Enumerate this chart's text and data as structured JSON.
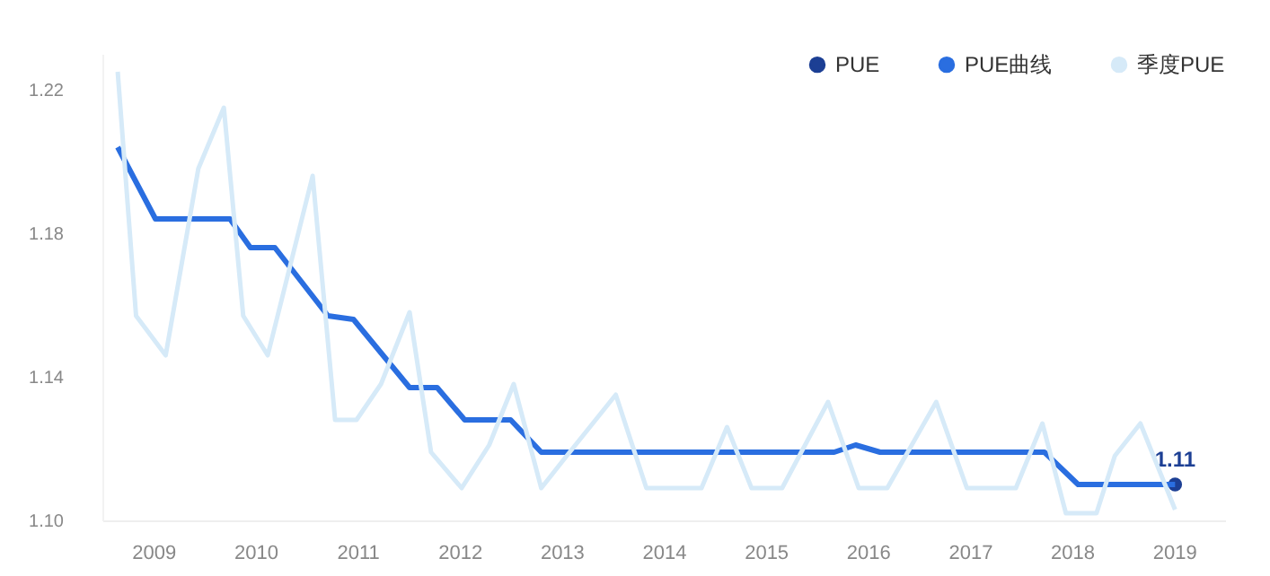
{
  "chart_data": {
    "type": "line",
    "xlim": [
      2008.5,
      2019.5
    ],
    "xticks": [
      2009,
      2010,
      2011,
      2012,
      2013,
      2014,
      2015,
      2016,
      2017,
      2018,
      2019
    ],
    "ylim": [
      1.1,
      1.23
    ],
    "yticks": [
      {
        "value": 1.1,
        "label": "1.10"
      },
      1.14,
      1.18,
      1.22
    ],
    "grid": false,
    "legend": "top right",
    "series": [
      {
        "name": "PUE",
        "type": "scatter",
        "color": "#1c3f94",
        "x": [
          2019.01
        ],
        "values": [
          1.11
        ],
        "value_labels": [
          "1.11"
        ]
      },
      {
        "name": "PUE曲线",
        "color": "#2a6ee0",
        "x": [
          2008.65,
          2009.02,
          2009.75,
          2009.95,
          2010.19,
          2010.71,
          2010.96,
          2011.51,
          2011.78,
          2012.05,
          2012.5,
          2012.8,
          2015.67,
          2015.88,
          2016.12,
          2017.73,
          2018.06,
          2019.01
        ],
        "values": [
          1.204,
          1.184,
          1.184,
          1.176,
          1.176,
          1.157,
          1.156,
          1.137,
          1.137,
          1.128,
          1.128,
          1.119,
          1.119,
          1.121,
          1.119,
          1.119,
          1.11,
          1.11
        ]
      },
      {
        "name": "季度PUE",
        "color": "#d6eaf8",
        "x": [
          2008.65,
          2008.83,
          2009.12,
          2009.44,
          2009.69,
          2009.88,
          2010.12,
          2010.56,
          2010.78,
          2010.99,
          2011.23,
          2011.51,
          2011.72,
          2012.02,
          2012.29,
          2012.53,
          2012.8,
          2013.05,
          2013.53,
          2013.83,
          2014.37,
          2014.62,
          2014.86,
          2015.16,
          2015.61,
          2015.91,
          2016.19,
          2016.67,
          2016.97,
          2017.45,
          2017.71,
          2017.94,
          2018.24,
          2018.42,
          2018.67,
          2019.01
        ],
        "values": [
          1.225,
          1.157,
          1.146,
          1.198,
          1.215,
          1.157,
          1.146,
          1.196,
          1.128,
          1.128,
          1.138,
          1.158,
          1.119,
          1.109,
          1.121,
          1.138,
          1.109,
          1.118,
          1.135,
          1.109,
          1.109,
          1.126,
          1.109,
          1.109,
          1.133,
          1.109,
          1.109,
          1.133,
          1.109,
          1.109,
          1.127,
          1.102,
          1.102,
          1.118,
          1.127,
          1.103
        ]
      }
    ]
  }
}
